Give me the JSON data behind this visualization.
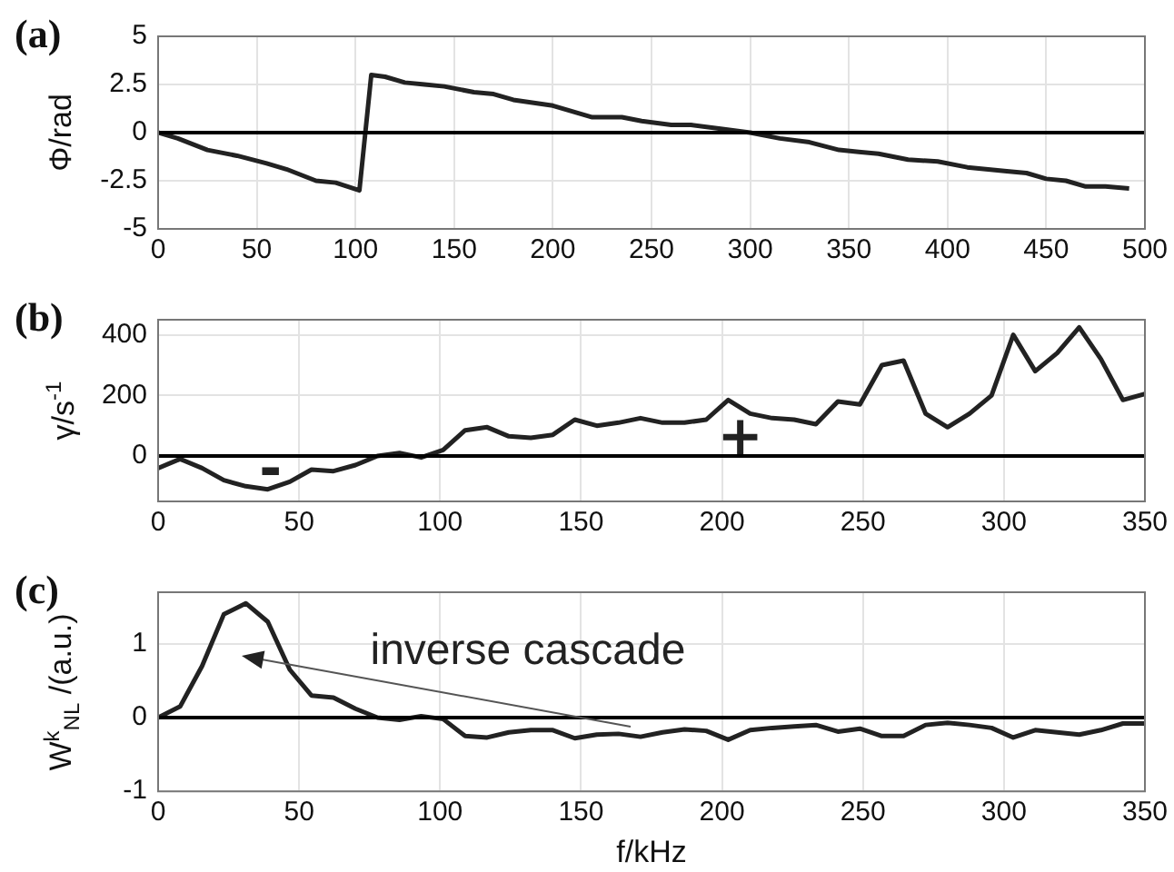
{
  "chart_data": [
    {
      "type": "line",
      "title": "(a)",
      "ylabel": "Φ/rad",
      "x": [
        0,
        10,
        25,
        40,
        55,
        65,
        80,
        90,
        102,
        108,
        115,
        125,
        135,
        145,
        160,
        170,
        180,
        200,
        220,
        235,
        245,
        260,
        270,
        285,
        300,
        315,
        330,
        345,
        355,
        365,
        380,
        395,
        410,
        430,
        440,
        450,
        460,
        470,
        480,
        492
      ],
      "series": [
        {
          "color": "#222222",
          "values": [
            0,
            -0.3,
            -0.9,
            -1.2,
            -1.6,
            -1.9,
            -2.5,
            -2.6,
            -3.0,
            3.0,
            2.9,
            2.6,
            2.5,
            2.4,
            2.1,
            2.0,
            1.7,
            1.4,
            0.8,
            0.8,
            0.6,
            0.4,
            0.4,
            0.2,
            0,
            -0.3,
            -0.5,
            -0.9,
            -1.0,
            -1.1,
            -1.4,
            -1.5,
            -1.8,
            -2.0,
            -2.1,
            -2.4,
            -2.5,
            -2.8,
            -2.8,
            -2.9
          ]
        }
      ],
      "xlim": [
        0,
        500
      ],
      "xticks": [
        0,
        50,
        100,
        150,
        200,
        250,
        300,
        350,
        400,
        450,
        500
      ],
      "ylim": [
        -5,
        5
      ],
      "yticks": [
        -5,
        -2.5,
        0,
        2.5,
        5
      ],
      "grid": true,
      "ref_lines": [
        {
          "axis": "y",
          "value": 0,
          "color": "#000000"
        }
      ]
    },
    {
      "type": "line",
      "title": "(b)",
      "ylabel": "γ/s$^{-1}$",
      "x": [
        0,
        7.8,
        15.6,
        23.3,
        31.1,
        38.9,
        46.7,
        54.4,
        62.2,
        70,
        77.8,
        85.6,
        93.3,
        101.1,
        108.9,
        116.7,
        124.4,
        132.2,
        140,
        147.8,
        155.6,
        163.3,
        171.1,
        178.9,
        186.7,
        194.4,
        202.2,
        210,
        217.8,
        225.6,
        233.3,
        241.1,
        248.9,
        256.7,
        264.4,
        272.2,
        280,
        287.8,
        295.6,
        303.3,
        311.1,
        318.9,
        326.7,
        334.4,
        342.2,
        350
      ],
      "series": [
        {
          "color": "#222222",
          "values": [
            -40,
            -10,
            -40,
            -80,
            -100,
            -110,
            -85,
            -45,
            -50,
            -30,
            0,
            10,
            -5,
            20,
            85,
            95,
            65,
            60,
            70,
            120,
            100,
            110,
            125,
            110,
            110,
            120,
            185,
            140,
            125,
            120,
            105,
            180,
            170,
            300,
            315,
            140,
            95,
            140,
            200,
            400,
            280,
            340,
            425,
            320,
            185,
            205
          ]
        }
      ],
      "xlim": [
        0,
        350
      ],
      "xticks": [
        0,
        50,
        100,
        150,
        200,
        250,
        300,
        350
      ],
      "ylim": [
        -150,
        450
      ],
      "yticks": [
        0,
        200,
        400
      ],
      "grid": true,
      "ref_lines": [
        {
          "axis": "y",
          "value": 0,
          "color": "#000000"
        }
      ],
      "annotations": [
        "-",
        "+"
      ]
    },
    {
      "type": "line",
      "title": "(c)",
      "ylabel": "W$^{k}$$_{NL}$ /(a.u.)",
      "xlabel": "f/kHz",
      "x": [
        0,
        7.8,
        15.6,
        23.3,
        31.1,
        38.9,
        46.7,
        54.4,
        62.2,
        70,
        77.8,
        85.6,
        93.3,
        101.1,
        108.9,
        116.7,
        124.4,
        132.2,
        140,
        147.8,
        155.6,
        163.3,
        171.1,
        178.9,
        186.7,
        194.4,
        202.2,
        210,
        217.8,
        225.6,
        233.3,
        241.1,
        248.9,
        256.7,
        264.4,
        272.2,
        280,
        287.8,
        295.6,
        303.3,
        311.1,
        318.9,
        326.7,
        334.4,
        342.2,
        350
      ],
      "series": [
        {
          "color": "#222222",
          "values": [
            0,
            0.15,
            0.7,
            1.4,
            1.55,
            1.3,
            0.65,
            0.3,
            0.27,
            0.12,
            0,
            -0.03,
            0.02,
            -0.02,
            -0.25,
            -0.27,
            -0.2,
            -0.17,
            -0.17,
            -0.28,
            -0.23,
            -0.22,
            -0.26,
            -0.2,
            -0.16,
            -0.18,
            -0.3,
            -0.17,
            -0.14,
            -0.12,
            -0.1,
            -0.19,
            -0.15,
            -0.25,
            -0.25,
            -0.1,
            -0.07,
            -0.1,
            -0.14,
            -0.27,
            -0.17,
            -0.2,
            -0.23,
            -0.17,
            -0.08,
            -0.08
          ]
        }
      ],
      "xlim": [
        0,
        350
      ],
      "xticks": [
        0,
        50,
        100,
        150,
        200,
        250,
        300,
        350
      ],
      "ylim": [
        -1,
        1.7
      ],
      "yticks": [
        -1,
        0,
        1
      ],
      "grid": true,
      "ref_lines": [
        {
          "axis": "y",
          "value": 0,
          "color": "#000000"
        }
      ],
      "annotations": [
        "inverse cascade"
      ]
    }
  ]
}
